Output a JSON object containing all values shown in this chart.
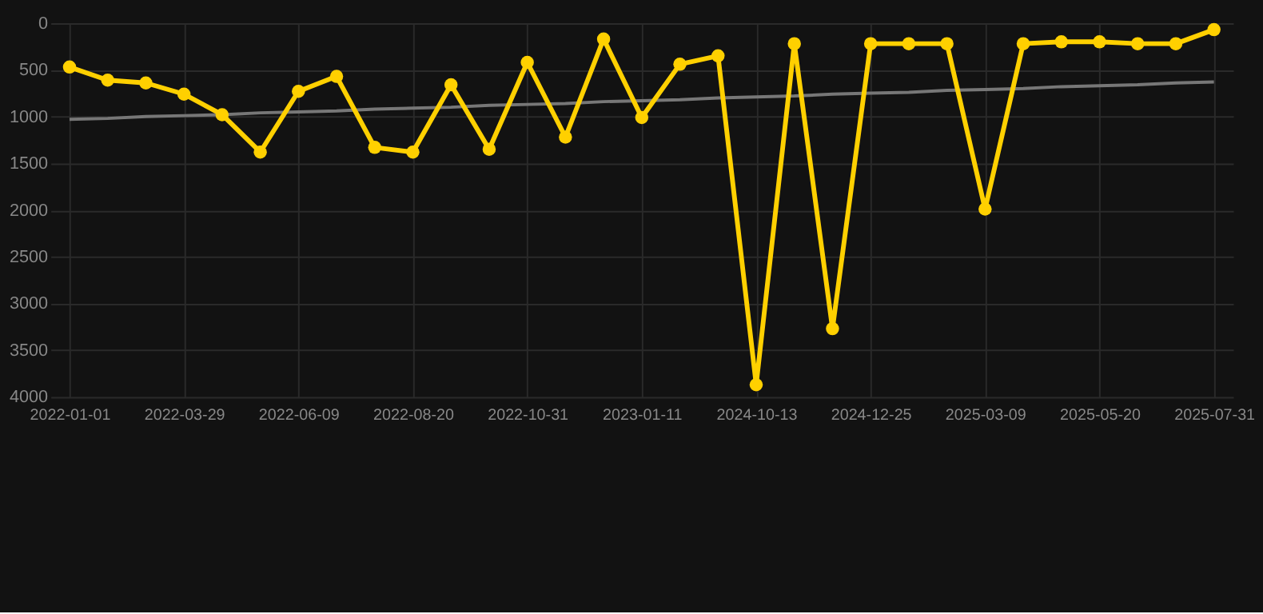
{
  "chart_data": {
    "type": "line",
    "categories": [
      "2022-01-01",
      null,
      null,
      "2022-03-29",
      null,
      null,
      "2022-06-09",
      null,
      null,
      "2022-08-20",
      null,
      null,
      "2022-10-31",
      null,
      null,
      "2023-01-11",
      null,
      null,
      "2024-10-13",
      null,
      null,
      "2024-12-25",
      null,
      null,
      "2025-03-09",
      null,
      null,
      "2025-05-20",
      null,
      null,
      "2025-07-31"
    ],
    "series": [
      {
        "color": "#ffd000",
        "marker": "circle",
        "values": [
          470,
          610,
          640,
          760,
          980,
          1380,
          730,
          570,
          1330,
          1380,
          660,
          1350,
          420,
          1220,
          170,
          1010,
          440,
          350,
          3870,
          220,
          3270,
          220,
          220,
          220,
          1990,
          220,
          200,
          200,
          220,
          220,
          70
        ]
      },
      {
        "type": "line",
        "color": "#777777",
        "marker": "none",
        "values": [
          1030,
          1020,
          1000,
          990,
          980,
          960,
          950,
          940,
          920,
          910,
          900,
          880,
          870,
          860,
          840,
          830,
          820,
          800,
          790,
          780,
          760,
          750,
          740,
          720,
          710,
          700,
          680,
          670,
          660,
          640,
          630
        ]
      }
    ],
    "ylim": [
      4000,
      0
    ],
    "yticks": [
      0,
      500,
      1000,
      1500,
      2000,
      2500,
      3000,
      3500,
      4000
    ],
    "grid": true
  }
}
